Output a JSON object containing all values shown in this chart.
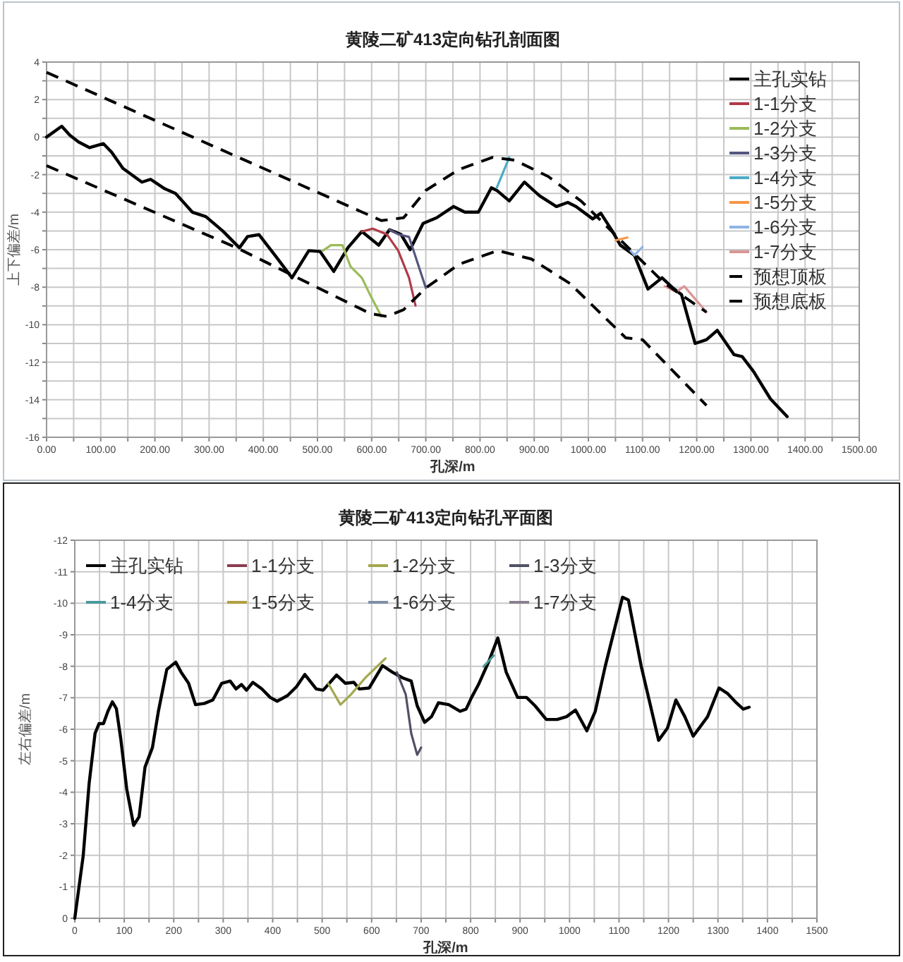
{
  "chart_data": [
    {
      "type": "line",
      "title": "黄陵二矿413定向钻孔剖面图",
      "xlabel": "孔深/m",
      "ylabel": "上下偏差/m",
      "xlim": [
        0,
        1500
      ],
      "ylim": [
        -16,
        4
      ],
      "xticks": [
        {
          "value": 0,
          "label": "0.00"
        },
        {
          "value": 50,
          "label": null
        },
        {
          "value": 100,
          "label": "100.00"
        },
        {
          "value": 150,
          "label": null
        },
        {
          "value": 200,
          "label": "200.00"
        },
        {
          "value": 250,
          "label": null
        },
        {
          "value": 300,
          "label": "300.00"
        },
        {
          "value": 350,
          "label": null
        },
        {
          "value": 400,
          "label": "400.00"
        },
        {
          "value": 450,
          "label": null
        },
        {
          "value": 500,
          "label": "500.00"
        },
        {
          "value": 550,
          "label": null
        },
        {
          "value": 600,
          "label": "600.00"
        },
        {
          "value": 650,
          "label": null
        },
        {
          "value": 700,
          "label": "700.00"
        },
        {
          "value": 750,
          "label": null
        },
        {
          "value": 800,
          "label": "800.00"
        },
        {
          "value": 850,
          "label": null
        },
        {
          "value": 900,
          "label": "900.00"
        },
        {
          "value": 950,
          "label": null
        },
        {
          "value": 1000,
          "label": "1000.00"
        },
        {
          "value": 1050,
          "label": null
        },
        {
          "value": 1100,
          "label": "1100.00"
        },
        {
          "value": 1150,
          "label": null
        },
        {
          "value": 1200,
          "label": "1200.00"
        },
        {
          "value": 1250,
          "label": null
        },
        {
          "value": 1300,
          "label": "1300.00"
        },
        {
          "value": 1350,
          "label": null
        },
        {
          "value": 1400,
          "label": "1400.00"
        },
        {
          "value": 1450,
          "label": null
        },
        {
          "value": 1500,
          "label": "1500.00"
        }
      ],
      "yticks": [
        -16,
        {
          "value": -15,
          "label": null
        },
        -14,
        {
          "value": -13,
          "label": null
        },
        -12,
        {
          "value": -11,
          "label": null
        },
        -10,
        {
          "value": -9,
          "label": null
        },
        -8,
        {
          "value": -7,
          "label": null
        },
        -6,
        {
          "value": -5,
          "label": null
        },
        -4,
        {
          "value": -3,
          "label": null
        },
        -2,
        {
          "value": -1,
          "label": null
        },
        0,
        {
          "value": 1,
          "label": null
        },
        2,
        {
          "value": 3,
          "label": null
        },
        4
      ],
      "grid": true,
      "legend": "top right",
      "series": [
        {
          "name": "主孔实钻",
          "color": "#000000",
          "x": [
            0,
            28,
            43,
            59,
            79,
            105,
            120,
            141,
            176,
            192,
            218,
            238,
            269,
            294,
            325,
            356,
            371,
            392,
            423,
            453,
            484,
            505,
            530,
            556,
            582,
            613,
            633,
            654,
            671,
            695,
            720,
            751,
            772,
            797,
            821,
            831,
            854,
            882,
            910,
            941,
            962,
            977,
            1008,
            1023,
            1044,
            1059,
            1085,
            1110,
            1136,
            1156,
            1172,
            1197,
            1218,
            1238,
            1269,
            1284,
            1305,
            1336,
            1367
          ],
          "values": [
            0,
            0.58,
            0.1,
            -0.26,
            -0.56,
            -0.35,
            -0.8,
            -1.67,
            -2.4,
            -2.25,
            -2.75,
            -3.0,
            -4.0,
            -4.24,
            -5.0,
            -5.9,
            -5.3,
            -5.2,
            -6.35,
            -7.5,
            -6.05,
            -6.1,
            -7.16,
            -5.9,
            -5.03,
            -5.76,
            -4.94,
            -5.18,
            -6.0,
            -4.6,
            -4.3,
            -3.7,
            -4.0,
            -4.0,
            -2.7,
            -2.84,
            -3.4,
            -2.4,
            -3.13,
            -3.7,
            -3.48,
            -3.7,
            -4.36,
            -4.06,
            -5.0,
            -5.76,
            -6.3,
            -8.1,
            -7.5,
            -8.04,
            -8.4,
            -11.0,
            -10.8,
            -10.3,
            -11.6,
            -11.7,
            -12.5,
            -13.95,
            -14.9
          ]
        },
        {
          "name": "1-1分支",
          "color": "#b03a48",
          "x": [
            582,
            602,
            628,
            649,
            669,
            681
          ],
          "values": [
            -5.03,
            -4.88,
            -5.18,
            -6.05,
            -7.5,
            -8.98
          ]
        },
        {
          "name": "1-2分支",
          "color": "#9bbb59",
          "x": [
            510,
            525,
            546,
            561,
            582,
            597,
            618
          ],
          "values": [
            -6.05,
            -5.76,
            -5.76,
            -6.9,
            -7.5,
            -8.4,
            -9.56
          ]
        },
        {
          "name": "1-3分支",
          "color": "#55557f",
          "x": [
            633,
            649,
            669,
            700
          ],
          "values": [
            -4.94,
            -5.18,
            -5.32,
            -8.04
          ]
        },
        {
          "name": "1-4分支",
          "color": "#4bacc6",
          "x": [
            831,
            854
          ],
          "values": [
            -2.7,
            -1.08
          ]
        },
        {
          "name": "1-5分支",
          "color": "#f79646",
          "x": [
            1050,
            1072
          ],
          "values": [
            -5.5,
            -5.35
          ]
        },
        {
          "name": "1-6分支",
          "color": "#8eb4e3",
          "x": [
            1069,
            1085,
            1100
          ],
          "values": [
            -5.76,
            -6.3,
            -5.85
          ]
        },
        {
          "name": "1-7分支",
          "color": "#d99694",
          "x": [
            1141,
            1162,
            1177,
            1218
          ],
          "values": [
            -7.95,
            -8.25,
            -7.95,
            -9.33
          ]
        },
        {
          "name": "预想顶板",
          "color": "#000000",
          "line_style": "dashed",
          "x": [
            0,
            618,
            659,
            700,
            761,
            823,
            864,
            926,
            987,
            1069,
            1141,
            1218
          ],
          "values": [
            3.45,
            -4.45,
            -4.3,
            -2.84,
            -1.73,
            -1.08,
            -1.23,
            -2.1,
            -3.42,
            -5.76,
            -7.8,
            -9.33
          ]
        },
        {
          "name": "预想底板",
          "color": "#000000",
          "line_style": "dashed",
          "x": [
            0,
            351,
            597,
            628,
            659,
            700,
            761,
            833,
            895,
            966,
            1069,
            1100,
            1218
          ],
          "values": [
            -1.52,
            -5.9,
            -9.4,
            -9.56,
            -9.2,
            -8.04,
            -6.78,
            -6.05,
            -6.5,
            -7.8,
            -10.7,
            -10.8,
            -14.3
          ]
        }
      ]
    },
    {
      "type": "line",
      "title": "黄陵二矿413定向钻孔平面图",
      "xlabel": "孔深/m",
      "ylabel": "左右偏差/m",
      "xlim": [
        0,
        1500
      ],
      "ylim": [
        0,
        -12
      ],
      "xticks": [
        0,
        {
          "value": 50,
          "label": null
        },
        100,
        {
          "value": 150,
          "label": null
        },
        200,
        {
          "value": 250,
          "label": null
        },
        300,
        {
          "value": 350,
          "label": null
        },
        400,
        {
          "value": 450,
          "label": null
        },
        500,
        {
          "value": 550,
          "label": null
        },
        600,
        {
          "value": 650,
          "label": null
        },
        700,
        {
          "value": 750,
          "label": null
        },
        800,
        {
          "value": 850,
          "label": null
        },
        900,
        {
          "value": 950,
          "label": null
        },
        1000,
        {
          "value": 1050,
          "label": null
        },
        1100,
        {
          "value": 1150,
          "label": null
        },
        1200,
        {
          "value": 1250,
          "label": null
        },
        1300,
        {
          "value": 1350,
          "label": null
        },
        1400,
        {
          "value": 1450,
          "label": null
        },
        1500
      ],
      "yticks": [
        0,
        -1,
        -2,
        -3,
        -4,
        -5,
        -6,
        -7,
        -8,
        -9,
        -10,
        -11,
        -12
      ],
      "grid": true,
      "legend": "top",
      "series": [
        {
          "name": "主孔实钻",
          "color": "#000000",
          "x": [
            0,
            17,
            29,
            41,
            49,
            58,
            67,
            76,
            84,
            93,
            105,
            119,
            130,
            142,
            157,
            169,
            186,
            204,
            215,
            230,
            244,
            262,
            279,
            297,
            314,
            326,
            337,
            347,
            360,
            378,
            395,
            409,
            430,
            448,
            465,
            488,
            502,
            529,
            547,
            564,
            575,
            595,
            622,
            642,
            663,
            680,
            692,
            707,
            721,
            735,
            756,
            779,
            791,
            802,
            816,
            837,
            855,
            872,
            895,
            913,
            930,
            953,
            975,
            994,
            1012,
            1035,
            1052,
            1072,
            1107,
            1119,
            1145,
            1180,
            1198,
            1215,
            1233,
            1250,
            1279,
            1302,
            1319,
            1337,
            1351,
            1363
          ],
          "values": [
            0,
            -1.98,
            -4.28,
            -5.87,
            -6.18,
            -6.18,
            -6.57,
            -6.87,
            -6.66,
            -5.69,
            -4.1,
            -2.95,
            -3.22,
            -4.8,
            -5.42,
            -6.57,
            -7.9,
            -8.13,
            -7.81,
            -7.46,
            -6.78,
            -6.82,
            -6.93,
            -7.46,
            -7.53,
            -7.28,
            -7.42,
            -7.24,
            -7.49,
            -7.28,
            -7.01,
            -6.89,
            -7.07,
            -7.35,
            -7.74,
            -7.28,
            -7.24,
            -7.72,
            -7.46,
            -7.49,
            -7.28,
            -7.31,
            -8.02,
            -7.81,
            -7.63,
            -7.53,
            -6.75,
            -6.22,
            -6.4,
            -6.84,
            -6.78,
            -6.57,
            -6.64,
            -7.01,
            -7.42,
            -8.16,
            -8.9,
            -7.81,
            -7.01,
            -7.01,
            -6.75,
            -6.31,
            -6.31,
            -6.4,
            -6.61,
            -5.95,
            -6.57,
            -7.99,
            -10.19,
            -10.1,
            -7.99,
            -5.65,
            -6.04,
            -6.93,
            -6.4,
            -5.78,
            -6.4,
            -7.31,
            -7.14,
            -6.84,
            -6.64,
            -6.7
          ]
        },
        {
          "name": "1-1分支",
          "color": "#8c3c50"
        },
        {
          "name": "1-2分支",
          "color": "#a3a84e",
          "x": [
            512,
            537,
            558,
            587,
            628
          ],
          "values": [
            -7.46,
            -6.78,
            -7.1,
            -7.63,
            -8.25
          ]
        },
        {
          "name": "1-3分支",
          "color": "#505066",
          "x": [
            651,
            669,
            680,
            692,
            700
          ],
          "values": [
            -7.81,
            -7.1,
            -5.87,
            -5.19,
            -5.42
          ]
        },
        {
          "name": "1-4分支",
          "color": "#4a9a9a",
          "x": [
            826,
            847
          ],
          "values": [
            -7.99,
            -8.34
          ]
        },
        {
          "name": "1-5分支",
          "color": "#b0a040"
        },
        {
          "name": "1-6分支",
          "color": "#7f8fa8"
        },
        {
          "name": "1-7分支",
          "color": "#8a8090"
        }
      ]
    }
  ]
}
